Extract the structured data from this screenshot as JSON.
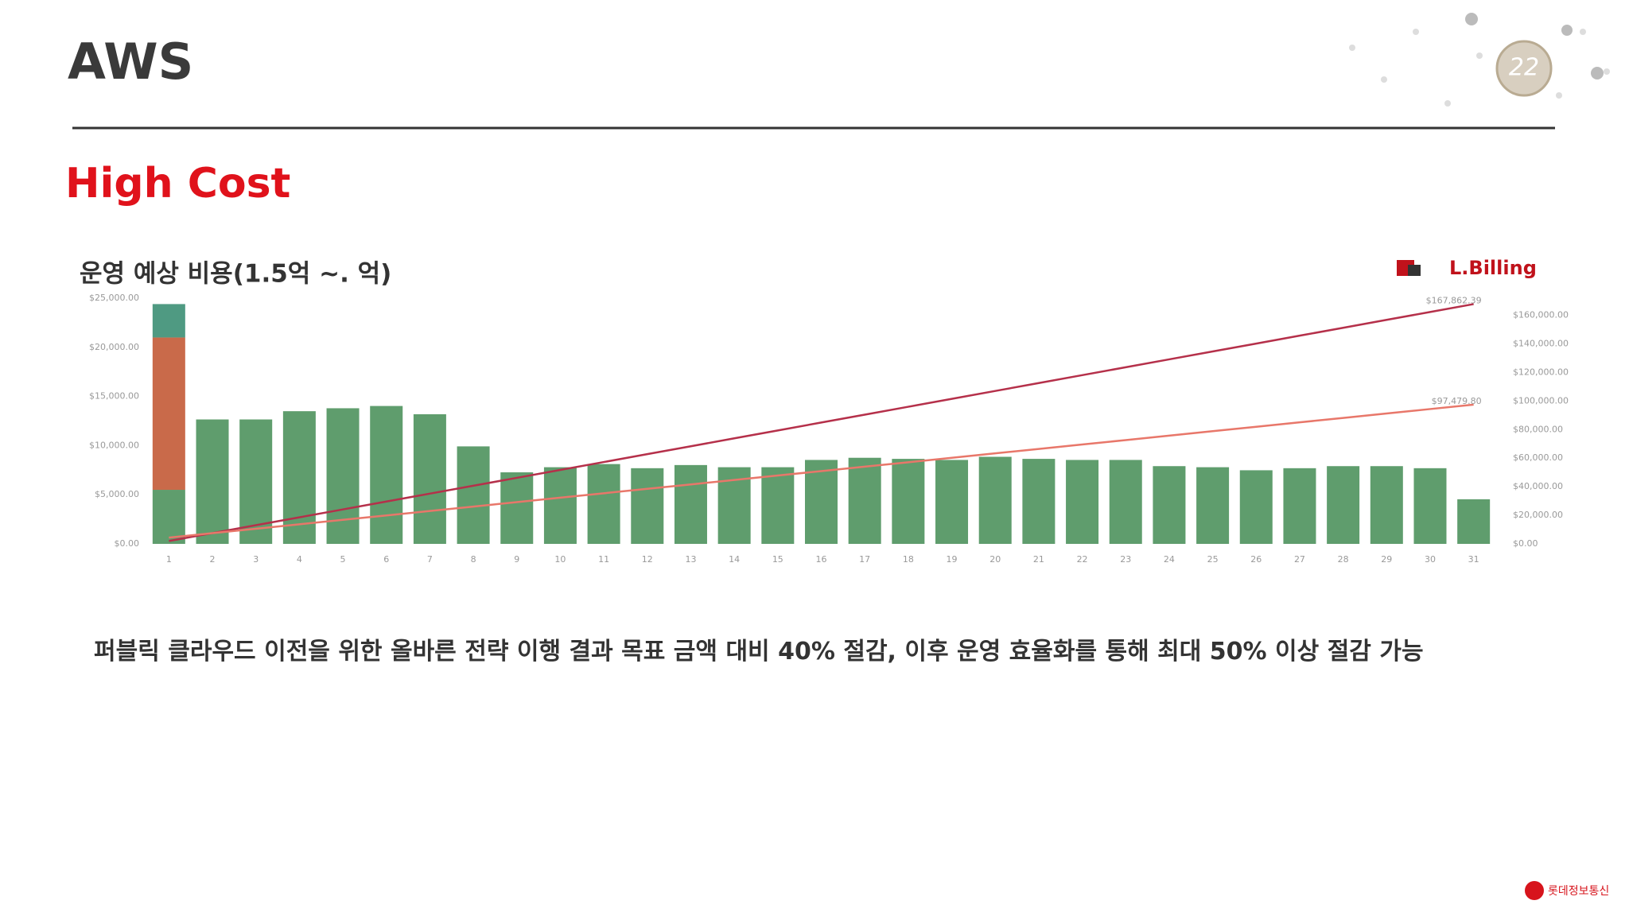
{
  "header": {
    "title": "AWS",
    "badge": "22"
  },
  "section": "High Cost",
  "chart_data": {
    "type": "bar",
    "title": "운영 예상 비용(1.5억 ~. 억)",
    "logo": "L.Billing",
    "categories": [
      "1",
      "2",
      "3",
      "4",
      "5",
      "6",
      "7",
      "8",
      "9",
      "10",
      "11",
      "12",
      "13",
      "14",
      "15",
      "16",
      "17",
      "18",
      "19",
      "20",
      "21",
      "22",
      "23",
      "24",
      "25",
      "26",
      "27",
      "28",
      "29",
      "30",
      "31"
    ],
    "series": [
      {
        "color": "#5f9d6d",
        "values": [
          5500,
          12660,
          12660,
          13500,
          13800,
          14030,
          13190,
          9920,
          7280,
          7800,
          8120,
          7700,
          8020,
          7800,
          7800,
          8540,
          8760,
          8650,
          8540,
          8860,
          8650,
          8540,
          8540,
          7910,
          7800,
          7490,
          7700,
          7910,
          7910,
          7700,
          4540
        ]
      },
      {
        "color": "#c96a4a",
        "values": [
          15500,
          0,
          0,
          0,
          0,
          0,
          0,
          0,
          0,
          0,
          0,
          0,
          0,
          0,
          0,
          0,
          0,
          0,
          0,
          0,
          0,
          0,
          0,
          0,
          0,
          0,
          0,
          0,
          0,
          0,
          0
        ]
      },
      {
        "color": "#4f9a82",
        "values": [
          3400,
          0,
          0,
          0,
          0,
          0,
          0,
          0,
          0,
          0,
          0,
          0,
          0,
          0,
          0,
          0,
          0,
          0,
          0,
          0,
          0,
          0,
          0,
          0,
          0,
          0,
          0,
          0,
          0,
          0,
          0
        ]
      },
      {
        "type": "line",
        "axis": "y2",
        "color": "#b5304a",
        "values": [
          2000,
          7529,
          13058,
          18587,
          24116,
          29645,
          35174,
          40703,
          46232,
          51761,
          57290,
          62819,
          68348,
          73877,
          79406,
          84935,
          90464,
          95993,
          101522,
          107051,
          112580,
          118109,
          123638,
          129167,
          134696,
          140225,
          145754,
          151283,
          156812,
          162341,
          167862.39
        ],
        "value_labels": [
          null,
          null,
          null,
          null,
          null,
          null,
          null,
          null,
          null,
          null,
          null,
          null,
          null,
          null,
          null,
          null,
          null,
          null,
          null,
          null,
          null,
          null,
          null,
          null,
          null,
          null,
          null,
          null,
          null,
          null,
          "$167,862.39"
        ]
      },
      {
        "type": "line",
        "axis": "y2",
        "color": "#e8776a",
        "values": [
          4400,
          7503,
          10606,
          13709,
          16812,
          19915,
          23018,
          26121,
          29224,
          32327,
          35430,
          38533,
          41636,
          44739,
          47842,
          50945,
          54048,
          57151,
          60254,
          63357,
          66460,
          69563,
          72666,
          75769,
          78872,
          81975,
          85078,
          88181,
          91284,
          94387,
          97479.8
        ],
        "value_labels": [
          null,
          null,
          null,
          null,
          null,
          null,
          null,
          null,
          null,
          null,
          null,
          null,
          null,
          null,
          null,
          null,
          null,
          null,
          null,
          null,
          null,
          null,
          null,
          null,
          null,
          null,
          null,
          null,
          null,
          null,
          "$97,479.80"
        ]
      }
    ],
    "ylim": [
      0,
      25000
    ],
    "yticks": [
      {
        "value": 0,
        "label": "$0.00"
      },
      {
        "value": 5000,
        "label": "$5,000.00"
      },
      {
        "value": 10000,
        "label": "$10,000.00"
      },
      {
        "value": 15000,
        "label": "$15,000.00"
      },
      {
        "value": 20000,
        "label": "$20,000.00"
      },
      {
        "value": 25000,
        "label": "$25,000.00"
      }
    ],
    "y2lim": [
      0,
      172000
    ],
    "y2ticks": [
      {
        "value": 0,
        "label": "$0.00"
      },
      {
        "value": 20000,
        "label": "$20,000.00"
      },
      {
        "value": 40000,
        "label": "$40,000.00"
      },
      {
        "value": 60000,
        "label": "$60,000.00"
      },
      {
        "value": 80000,
        "label": "$80,000.00"
      },
      {
        "value": 100000,
        "label": "$100,000.00"
      },
      {
        "value": 120000,
        "label": "$120,000.00"
      },
      {
        "value": 140000,
        "label": "$140,000.00"
      },
      {
        "value": 160000,
        "label": "$160,000.00"
      }
    ]
  },
  "body": "퍼블릭 클라우드 이전을 위한 올바른 전략 이행 결과 목표 금액 대비 40% 절감, 이후 운영 효율화를 통해 최대 50% 이상 절감 가능",
  "footer": "롯데정보통신"
}
